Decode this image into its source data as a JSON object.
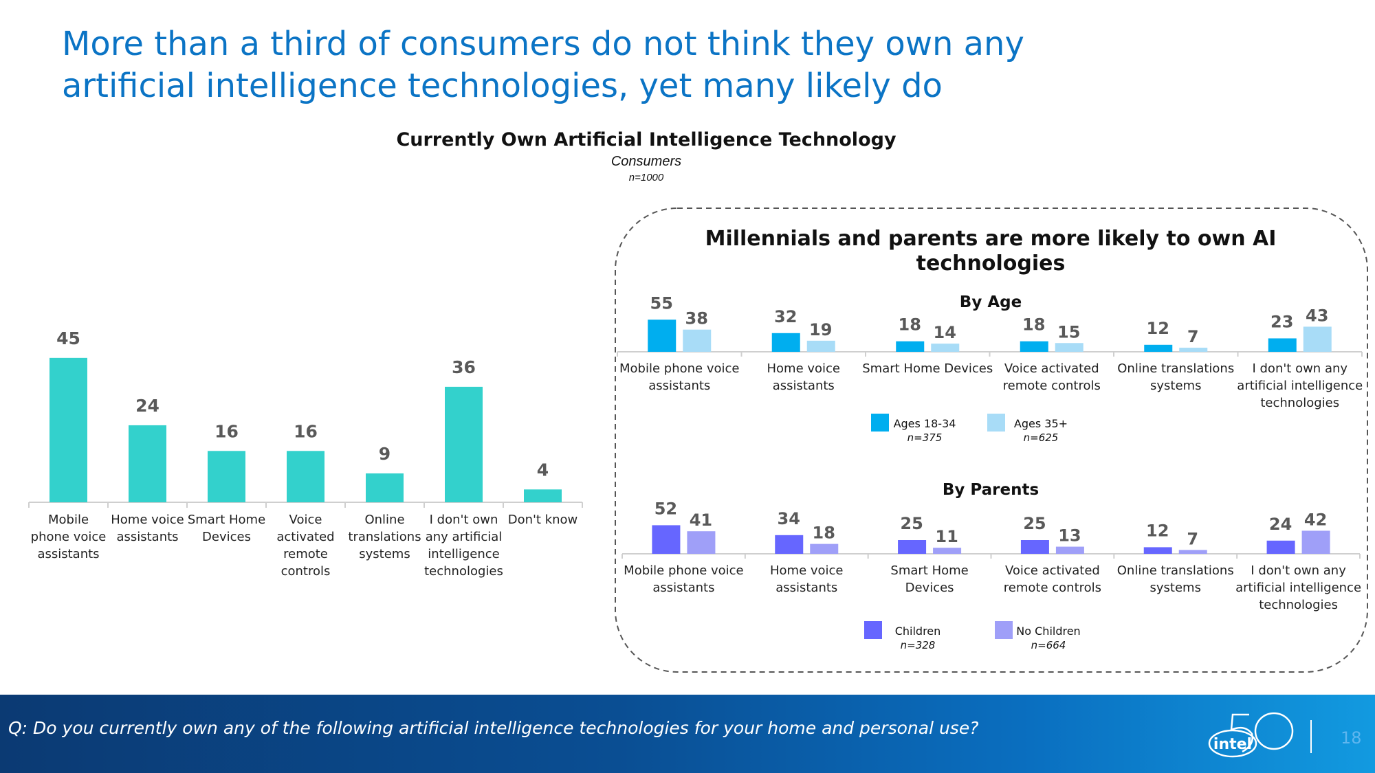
{
  "slide": {
    "title": "More than a third of consumers do not think they own any artificial intelligence technologies, yet many likely do",
    "question": "Q: Do you currently own any of the following artificial intelligence technologies for your home and personal use?",
    "page_number": "18",
    "logo_text": "intel"
  },
  "main_chart": {
    "title": "Currently Own Artificial Intelligence Technology",
    "subtitle": "Consumers",
    "n": "n=1000"
  },
  "callout": {
    "title": "Millennials and parents are more likely to own AI technologies"
  },
  "colors": {
    "main_bar": "#33d1cc",
    "ages_18_34": "#00aeef",
    "ages_35_plus": "#a8dcf7",
    "children": "#6666ff",
    "no_children": "#9f9ff8",
    "title_blue": "#0b74c5",
    "value_label": "#595959"
  },
  "chart_data": [
    {
      "id": "main",
      "type": "bar",
      "title": "Currently Own Artificial Intelligence Technology",
      "subtitle": "Consumers",
      "categories": [
        [
          "Mobile",
          "phone voice",
          "assistants"
        ],
        [
          "Home voice",
          "assistants"
        ],
        [
          "Smart Home",
          "Devices"
        ],
        [
          "Voice",
          "activated",
          "remote",
          "controls"
        ],
        [
          "Online",
          "translations",
          "systems"
        ],
        [
          "I don't own",
          "any artificial",
          "intelligence",
          "technologies"
        ],
        [
          "Don't know"
        ]
      ],
      "values": [
        45,
        24,
        16,
        16,
        9,
        36,
        4
      ],
      "ylim": [
        0,
        50
      ]
    },
    {
      "id": "by_age",
      "type": "bar",
      "title": "By Age",
      "categories": [
        [
          "Mobile phone voice",
          "assistants"
        ],
        [
          "Home voice",
          "assistants"
        ],
        [
          "Smart Home Devices"
        ],
        [
          "Voice activated",
          "remote controls"
        ],
        [
          "Online translations",
          "systems"
        ],
        [
          "I don't own any",
          "artificial intelligence",
          "technologies"
        ]
      ],
      "series": [
        {
          "name": "Ages 18-34",
          "n": "n=375",
          "values": [
            55,
            32,
            18,
            18,
            12,
            23
          ]
        },
        {
          "name": "Ages 35+",
          "n": "n=625",
          "values": [
            38,
            19,
            14,
            15,
            7,
            43
          ]
        }
      ],
      "ylim": [
        0,
        60
      ]
    },
    {
      "id": "by_parents",
      "type": "bar",
      "title": "By Parents",
      "categories": [
        [
          "Mobile phone voice",
          "assistants"
        ],
        [
          "Home voice",
          "assistants"
        ],
        [
          "Smart Home",
          "Devices"
        ],
        [
          "Voice activated",
          "remote controls"
        ],
        [
          "Online translations",
          "systems"
        ],
        [
          "I don't own any",
          "artificial intelligence",
          "technologies"
        ]
      ],
      "series": [
        {
          "name": "Children",
          "n": "n=328",
          "values": [
            52,
            34,
            25,
            25,
            12,
            24
          ]
        },
        {
          "name": "No Children",
          "n": "n=664",
          "values": [
            41,
            18,
            11,
            13,
            7,
            42
          ]
        }
      ],
      "ylim": [
        0,
        60
      ]
    }
  ]
}
